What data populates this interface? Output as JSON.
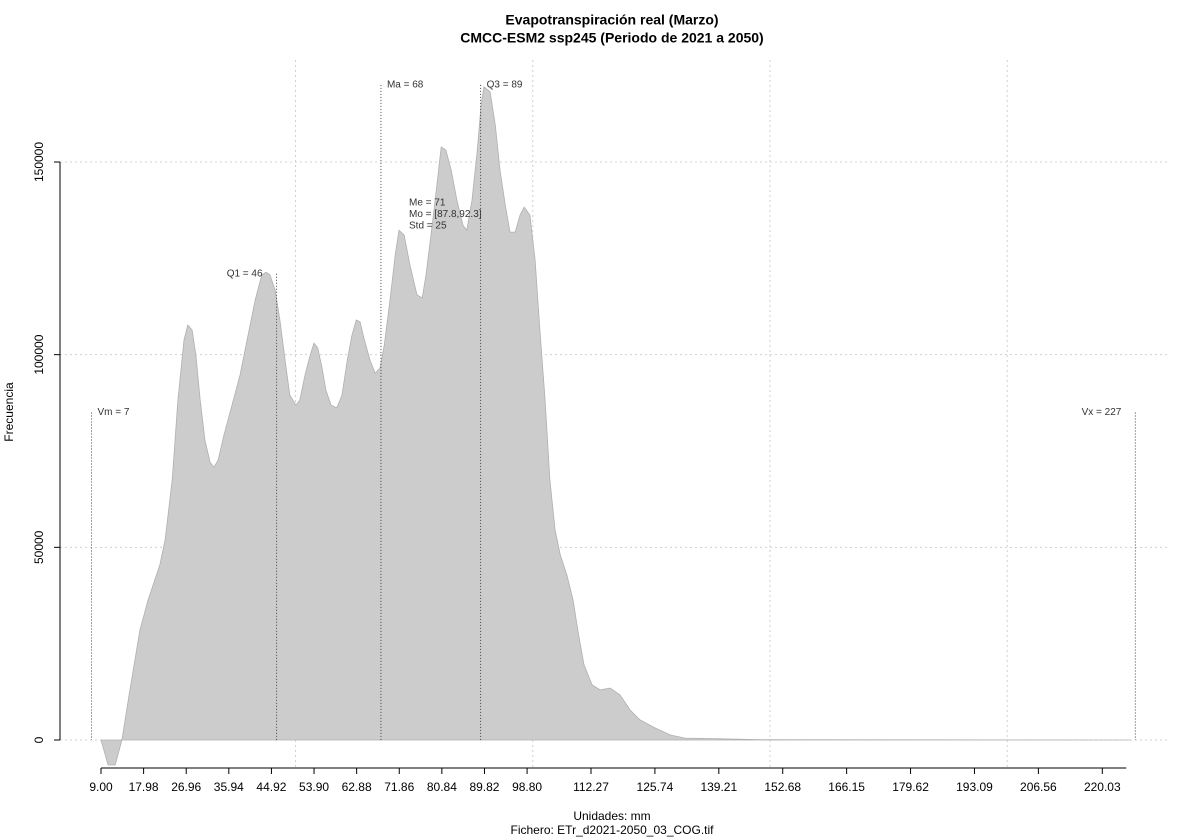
{
  "chart_data": {
    "type": "area",
    "title": "Evapotranspiración real (Marzo)",
    "subtitle": "CMCC-ESM2 ssp245 (Periodo de 2021 a 2050)",
    "xlabel": "Unidades: mm",
    "ylabel": "Frecuencia",
    "caption": "Fichero: ETr_d2021-2050_03_COG.tif",
    "color": "#cccccc",
    "grid": true,
    "xlim": [
      0.36,
      234.3
    ],
    "ylim": [
      -7270,
      176470
    ],
    "xticks": [
      {
        "value": 9,
        "label": "9.00"
      },
      17.98,
      26.96,
      35.94,
      44.92,
      {
        "value": 53.9,
        "label": "53.90"
      },
      62.88,
      71.86,
      80.84,
      89.82,
      {
        "value": 98.8,
        "label": "98.80"
      },
      112.27,
      125.74,
      139.21,
      152.68,
      166.15,
      179.62,
      193.09,
      206.56,
      220.03
    ],
    "xgrid": [
      50,
      100,
      150,
      200
    ],
    "yticks": [
      0,
      50000,
      100000,
      150000
    ],
    "x": [
      9.0,
      10.5,
      12.0,
      13.4,
      15.1,
      17.2,
      18.9,
      21.4,
      22.5,
      24.0,
      25.2,
      26.5,
      27.3,
      28.2,
      29.0,
      29.9,
      30.9,
      32.0,
      32.8,
      33.7,
      34.9,
      36.6,
      38.3,
      40.0,
      41.5,
      42.9,
      43.8,
      44.6,
      45.7,
      46.7,
      47.8,
      48.8,
      50.1,
      50.9,
      52.0,
      53.1,
      53.9,
      54.7,
      55.6,
      56.4,
      57.5,
      58.7,
      59.8,
      60.9,
      61.9,
      62.8,
      63.6,
      64.4,
      65.7,
      66.8,
      67.8,
      68.7,
      69.9,
      71.0,
      71.8,
      72.9,
      74.1,
      75.6,
      76.7,
      77.5,
      78.8,
      79.8,
      80.7,
      81.7,
      82.8,
      84.0,
      85.3,
      86.1,
      87.2,
      88.3,
      89.1,
      89.7,
      91.0,
      92.1,
      93.1,
      94.2,
      95.2,
      96.3,
      97.3,
      98.2,
      99.4,
      100.5,
      101.5,
      102.6,
      103.6,
      104.7,
      105.8,
      107.2,
      108.5,
      109.5,
      110.8,
      112.5,
      114.2,
      116.3,
      118.4,
      120.5,
      122.6,
      125.8,
      129.0,
      132.1,
      139.5,
      147.9,
      225.9
    ],
    "values": [
      0,
      -6500,
      -6500,
      0,
      13000,
      28500,
      36300,
      45400,
      51900,
      67500,
      88200,
      103800,
      107700,
      106400,
      99900,
      88200,
      77900,
      72100,
      70800,
      72700,
      79100,
      86900,
      94700,
      105100,
      114200,
      120700,
      121400,
      120700,
      116800,
      109000,
      98600,
      89500,
      86900,
      88200,
      94700,
      99900,
      103000,
      101700,
      96500,
      90800,
      86900,
      86200,
      89500,
      98600,
      105100,
      109000,
      108500,
      104300,
      98600,
      95200,
      96500,
      102500,
      114200,
      125900,
      132300,
      131000,
      123300,
      115500,
      114700,
      120700,
      133600,
      144000,
      153900,
      153100,
      147900,
      140100,
      133600,
      132300,
      140100,
      153100,
      164800,
      169500,
      168200,
      159600,
      147900,
      138800,
      131800,
      131800,
      136200,
      138300,
      136200,
      124600,
      106400,
      88200,
      67500,
      54500,
      48000,
      42800,
      36300,
      28500,
      19500,
      14300,
      13000,
      13500,
      11700,
      7800,
      5200,
      3100,
      1300,
      500,
      300,
      100,
      0
    ],
    "annotations": [
      {
        "label": "Vm = 7",
        "x": 7,
        "y": 85000
      },
      {
        "label": "Q1 = 46",
        "x": 46,
        "y": 121000
      },
      {
        "label": "Ma = 68",
        "x": 68,
        "y": 170000
      },
      {
        "label": "Q3 = 89",
        "x": 89,
        "y": 170000
      },
      {
        "label": "Vx = 227",
        "x": 227,
        "y": 85000
      }
    ],
    "stats": [
      "Me = 71",
      "Mo = [87.8,92.3]",
      "Std = 25"
    ]
  }
}
